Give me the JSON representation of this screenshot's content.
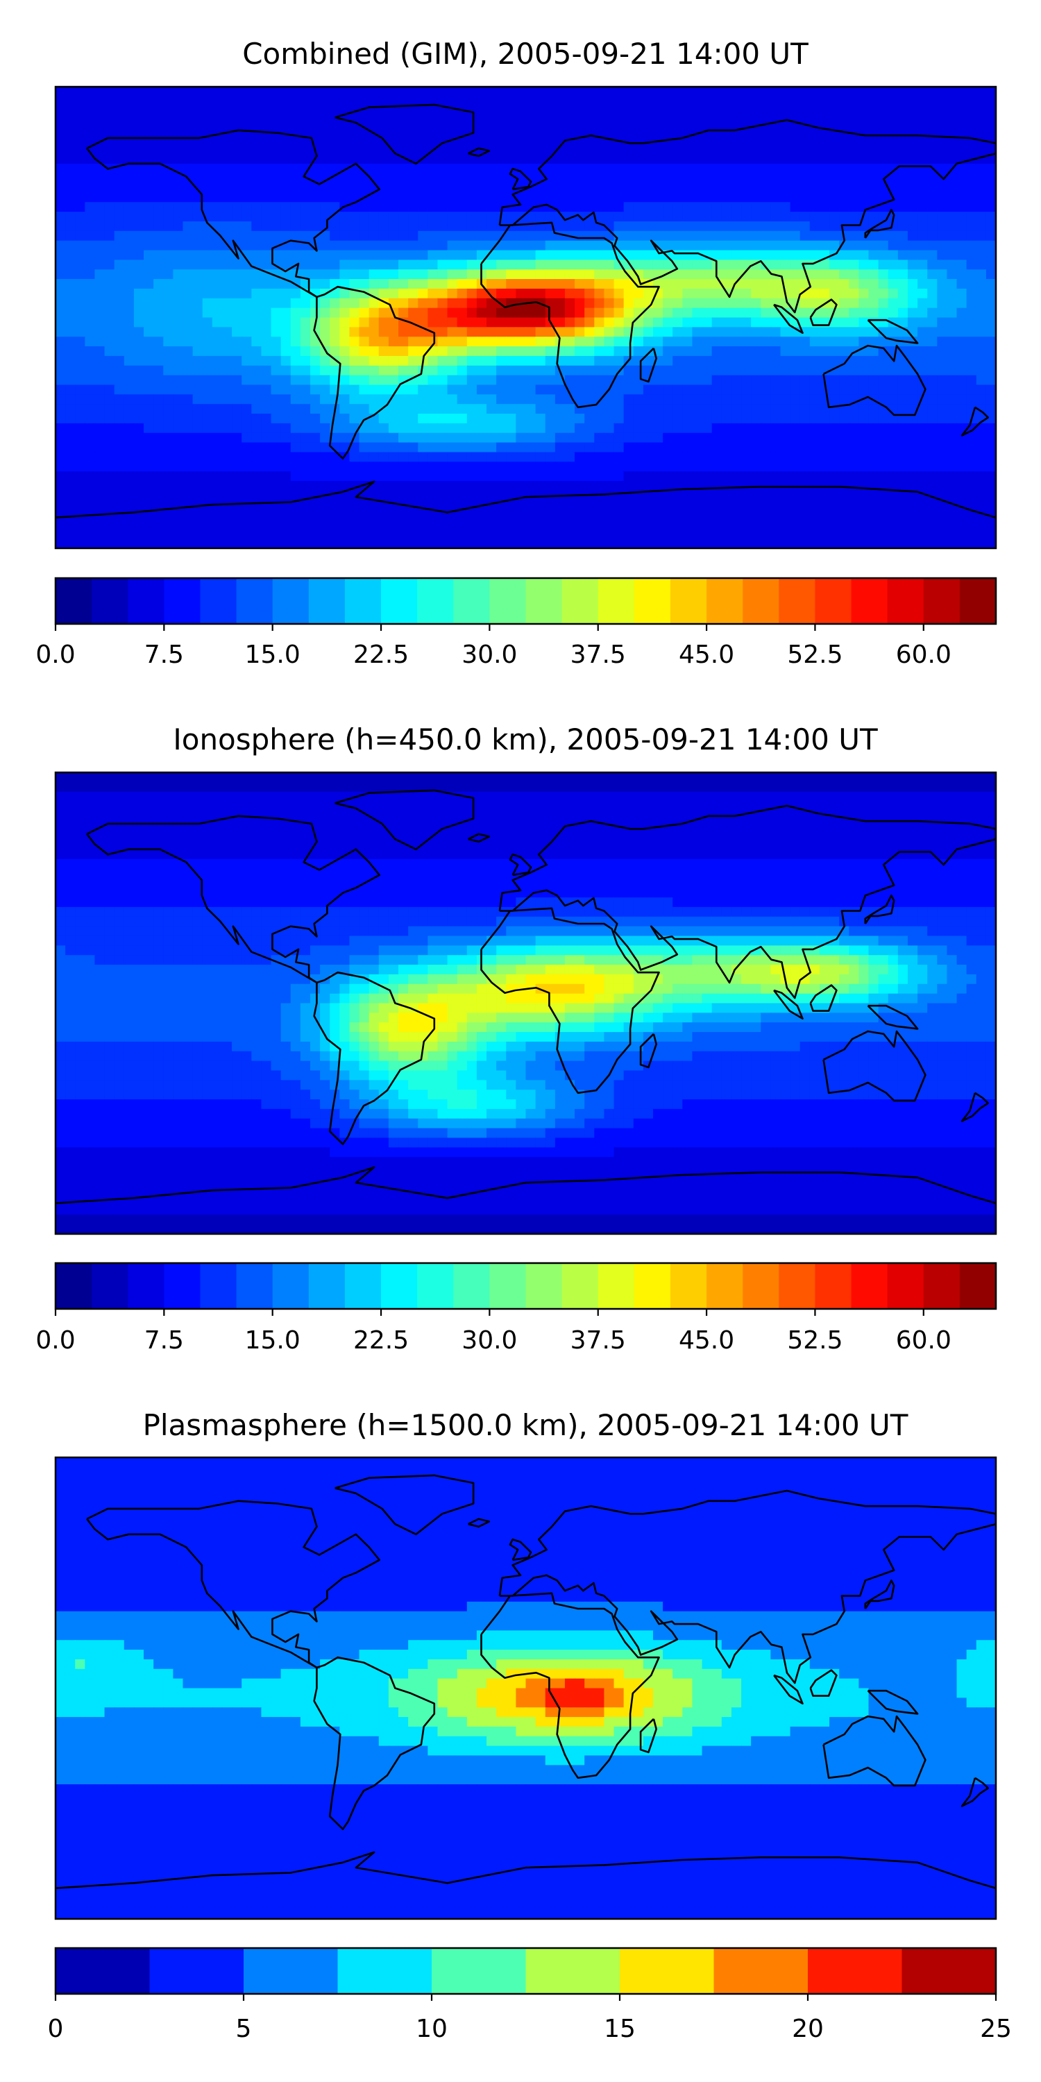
{
  "chart_data": [
    {
      "type": "heatmap",
      "title": "Combined (GIM), 2005-09-21 14:00 UT",
      "projection": "equirectangular world map with coastlines",
      "lon_range": [
        -180,
        180
      ],
      "lat_range": [
        -90,
        90
      ],
      "colorbar": {
        "colormap": "jet",
        "levels": [
          0.0,
          2.5,
          5.0,
          7.5,
          10.0,
          12.5,
          15.0,
          17.5,
          20.0,
          22.5,
          25.0,
          27.5,
          30.0,
          32.5,
          35.0,
          37.5,
          40.0,
          42.5,
          45.0,
          47.5,
          50.0,
          52.5,
          55.0,
          57.5,
          60.0,
          62.5,
          65.0
        ],
        "tick_labels": [
          "0.0",
          "7.5",
          "15.0",
          "22.5",
          "30.0",
          "37.5",
          "45.0",
          "52.5",
          "60.0"
        ],
        "tick_values": [
          0.0,
          7.5,
          15.0,
          22.5,
          30.0,
          37.5,
          45.0,
          52.5,
          60.0
        ]
      },
      "value_range": [
        0,
        65
      ],
      "features": [
        {
          "lon": 0,
          "lat": 2,
          "peak": 62,
          "desc": "equatorial Africa maximum"
        },
        {
          "lon": -55,
          "lat": -8,
          "peak": 45,
          "desc": "South America"
        },
        {
          "lon": 120,
          "lat": 8,
          "peak": 33,
          "desc": "Maritime Continent"
        },
        {
          "lon": -30,
          "lat": -45,
          "peak": 27,
          "desc": "South Atlantic"
        }
      ]
    },
    {
      "type": "heatmap",
      "title": "Ionosphere  (h=450.0 km), 2005-09-21 14:00 UT",
      "projection": "equirectangular world map with coastlines",
      "lon_range": [
        -180,
        180
      ],
      "lat_range": [
        -90,
        90
      ],
      "colorbar": {
        "colormap": "jet",
        "levels": [
          0.0,
          2.5,
          5.0,
          7.5,
          10.0,
          12.5,
          15.0,
          17.5,
          20.0,
          22.5,
          25.0,
          27.5,
          30.0,
          32.5,
          35.0,
          37.5,
          40.0,
          42.5,
          45.0,
          47.5,
          50.0,
          52.5,
          55.0,
          57.5,
          60.0,
          62.5,
          65.0
        ],
        "tick_labels": [
          "0.0",
          "7.5",
          "15.0",
          "22.5",
          "30.0",
          "37.5",
          "45.0",
          "52.5",
          "60.0"
        ],
        "tick_values": [
          0.0,
          7.5,
          15.0,
          22.5,
          30.0,
          37.5,
          45.0,
          52.5,
          60.0
        ]
      },
      "value_range": [
        0,
        65
      ],
      "features": [
        {
          "lon": 10,
          "lat": 5,
          "peak": 40,
          "desc": "Africa"
        },
        {
          "lon": -45,
          "lat": -10,
          "peak": 38,
          "desc": "South America"
        },
        {
          "lon": 100,
          "lat": 10,
          "peak": 32,
          "desc": "South/Southeast Asia"
        },
        {
          "lon": -20,
          "lat": -40,
          "peak": 28,
          "desc": "South Atlantic"
        }
      ]
    },
    {
      "type": "heatmap",
      "title": "Plasmasphere (h=1500.0 km), 2005-09-21 14:00 UT",
      "projection": "equirectangular world map with coastlines",
      "lon_range": [
        -180,
        180
      ],
      "lat_range": [
        -90,
        90
      ],
      "colorbar": {
        "colormap": "jet",
        "levels": [
          0,
          2.5,
          5,
          7.5,
          10,
          12.5,
          15,
          17.5,
          20,
          22.5,
          25
        ],
        "tick_labels": [
          "0",
          "5",
          "10",
          "15",
          "20",
          "25"
        ],
        "tick_values": [
          0,
          5,
          10,
          15,
          20,
          25
        ]
      },
      "value_range": [
        0,
        25
      ],
      "features": [
        {
          "lon": 20,
          "lat": -2,
          "peak": 18,
          "desc": "central Africa"
        },
        {
          "lon": 10,
          "lat": -5,
          "peak": 16,
          "desc": "Africa / Atlantic"
        },
        {
          "lon": -170,
          "lat": 10,
          "peak": 10.5,
          "desc": "central Pacific"
        },
        {
          "lon": 150,
          "lat": 5,
          "peak": 6.5,
          "desc": "west Pacific low"
        }
      ]
    }
  ]
}
